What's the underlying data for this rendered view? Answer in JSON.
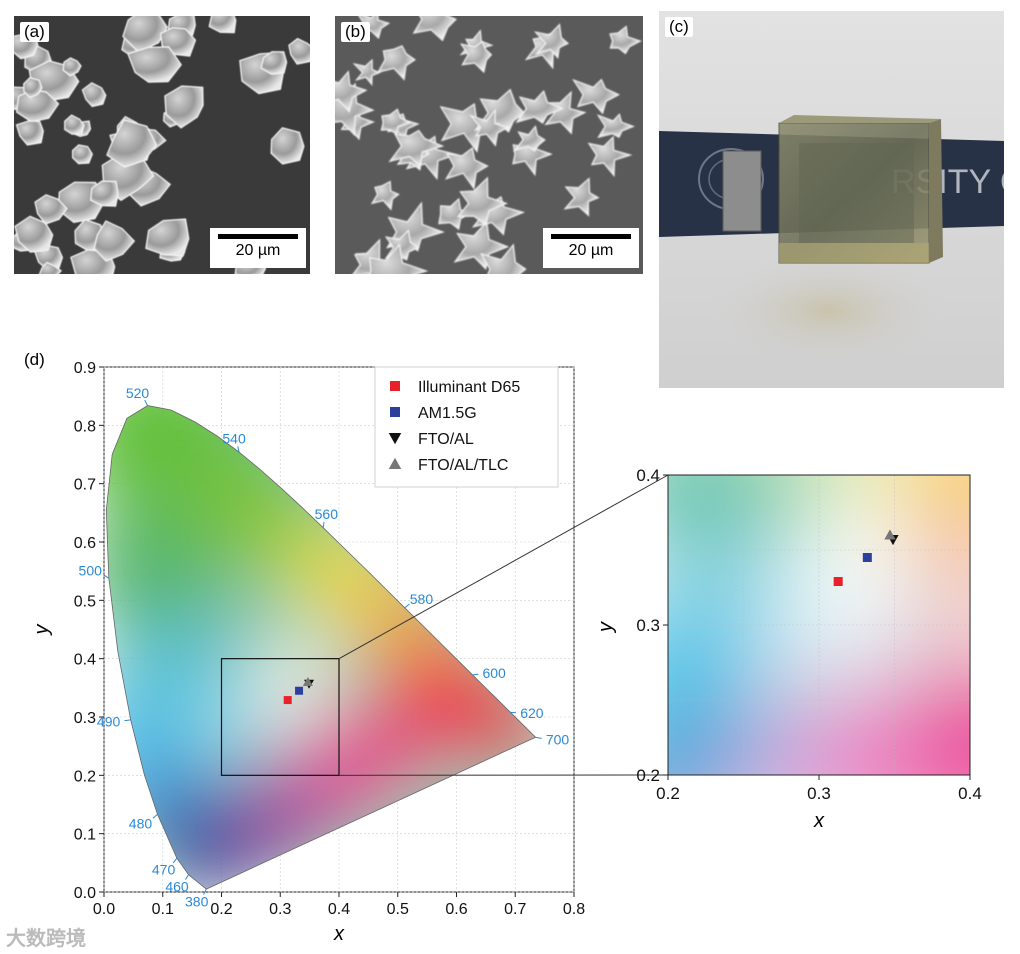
{
  "figure": {
    "panels": {
      "a": {
        "label": "(a)",
        "scale_bar": "20 µm"
      },
      "b": {
        "label": "(b)",
        "scale_bar": "20 µm"
      },
      "c": {
        "label": "(c)",
        "photo_text": "RSITY   OX FO"
      },
      "d": {
        "label": "(d)"
      }
    },
    "watermark": "大数跨境"
  },
  "chart_data": [
    {
      "type": "scatter",
      "title": "",
      "xlabel": "x",
      "ylabel": "y",
      "xlim": [
        0.0,
        0.8
      ],
      "ylim": [
        0.0,
        0.9
      ],
      "xticks": [
        "0.0",
        "0.1",
        "0.2",
        "0.3",
        "0.4",
        "0.5",
        "0.6",
        "0.7",
        "0.8"
      ],
      "yticks": [
        "0.0",
        "0.1",
        "0.2",
        "0.3",
        "0.4",
        "0.5",
        "0.6",
        "0.7",
        "0.8",
        "0.9"
      ],
      "grid": true,
      "legend_position": "top-right",
      "wavelength_labels": [
        {
          "label": "520",
          "x": 0.074,
          "y": 0.834
        },
        {
          "label": "540",
          "x": 0.23,
          "y": 0.754
        },
        {
          "label": "560",
          "x": 0.373,
          "y": 0.624
        },
        {
          "label": "580",
          "x": 0.512,
          "y": 0.487
        },
        {
          "label": "600",
          "x": 0.627,
          "y": 0.372
        },
        {
          "label": "620",
          "x": 0.691,
          "y": 0.308
        },
        {
          "label": "700",
          "x": 0.735,
          "y": 0.265
        },
        {
          "label": "500",
          "x": 0.008,
          "y": 0.538
        },
        {
          "label": "490",
          "x": 0.045,
          "y": 0.295
        },
        {
          "label": "480",
          "x": 0.091,
          "y": 0.133
        },
        {
          "label": "470",
          "x": 0.124,
          "y": 0.058
        },
        {
          "label": "460",
          "x": 0.144,
          "y": 0.03
        },
        {
          "label": "380",
          "x": 0.174,
          "y": 0.005
        }
      ],
      "locus": [
        [
          0.1741,
          0.005
        ],
        [
          0.144,
          0.0297
        ],
        [
          0.1241,
          0.0578
        ],
        [
          0.0913,
          0.1327
        ],
        [
          0.0687,
          0.2007
        ],
        [
          0.0454,
          0.295
        ],
        [
          0.0235,
          0.4127
        ],
        [
          0.0082,
          0.5384
        ],
        [
          0.0039,
          0.6548
        ],
        [
          0.0139,
          0.7502
        ],
        [
          0.0389,
          0.812
        ],
        [
          0.0743,
          0.8338
        ],
        [
          0.1142,
          0.8262
        ],
        [
          0.1547,
          0.8059
        ],
        [
          0.1929,
          0.7816
        ],
        [
          0.2296,
          0.7543
        ],
        [
          0.2658,
          0.7243
        ],
        [
          0.3016,
          0.6923
        ],
        [
          0.3373,
          0.6589
        ],
        [
          0.3731,
          0.6245
        ],
        [
          0.4087,
          0.5896
        ],
        [
          0.4441,
          0.5547
        ],
        [
          0.4788,
          0.5202
        ],
        [
          0.5125,
          0.4866
        ],
        [
          0.5448,
          0.4544
        ],
        [
          0.5752,
          0.4242
        ],
        [
          0.6029,
          0.3965
        ],
        [
          0.627,
          0.3725
        ],
        [
          0.6482,
          0.3514
        ],
        [
          0.6658,
          0.334
        ],
        [
          0.6915,
          0.3083
        ],
        [
          0.7079,
          0.292
        ],
        [
          0.7347,
          0.2653
        ]
      ],
      "series": [
        {
          "name": "Illuminant D65",
          "marker": "square",
          "color": "#e8202a",
          "x": [
            0.3127
          ],
          "y": [
            0.329
          ]
        },
        {
          "name": "AM1.5G",
          "marker": "square",
          "color": "#2b3f9c",
          "x": [
            0.332
          ],
          "y": [
            0.345
          ]
        },
        {
          "name": "FTO/AL",
          "marker": "triangle-down",
          "color": "#111111",
          "x": [
            0.349
          ],
          "y": [
            0.357
          ]
        },
        {
          "name": "FTO/AL/TLC",
          "marker": "triangle-up",
          "color": "#777777",
          "x": [
            0.347
          ],
          "y": [
            0.36
          ]
        }
      ],
      "zoom_box": {
        "xlim": [
          0.2,
          0.4
        ],
        "ylim": [
          0.2,
          0.4
        ]
      }
    },
    {
      "type": "scatter",
      "title": "",
      "xlabel": "x",
      "ylabel": "y",
      "xlim": [
        0.2,
        0.4
      ],
      "ylim": [
        0.2,
        0.4
      ],
      "xticks": [
        "0.2",
        "0.3",
        "0.4"
      ],
      "yticks": [
        "0.2",
        "0.3",
        "0.4"
      ],
      "grid": true,
      "series": [
        {
          "name": "Illuminant D65",
          "marker": "square",
          "color": "#e8202a",
          "x": [
            0.3127
          ],
          "y": [
            0.329
          ]
        },
        {
          "name": "AM1.5G",
          "marker": "square",
          "color": "#2b3f9c",
          "x": [
            0.332
          ],
          "y": [
            0.345
          ]
        },
        {
          "name": "FTO/AL",
          "marker": "triangle-down",
          "color": "#111111",
          "x": [
            0.349
          ],
          "y": [
            0.357
          ]
        },
        {
          "name": "FTO/AL/TLC",
          "marker": "triangle-up",
          "color": "#777777",
          "x": [
            0.347
          ],
          "y": [
            0.36
          ]
        }
      ]
    }
  ]
}
